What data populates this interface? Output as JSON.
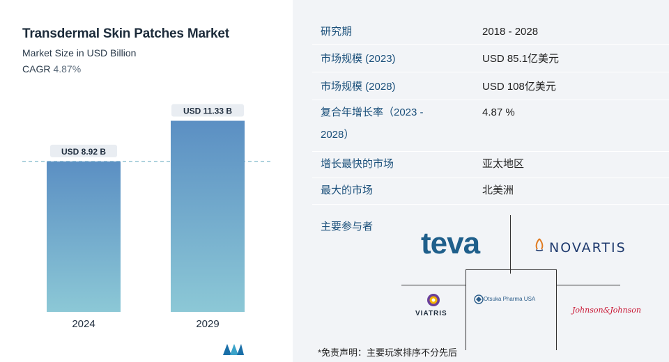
{
  "chart": {
    "title": "Transdermal Skin Patches Market",
    "subtitle": "Market Size in USD Billion",
    "cagr_label": "CAGR",
    "cagr_value": "4.87%"
  },
  "chart_data": {
    "type": "bar",
    "title": "Transdermal Skin Patches Market",
    "subtitle": "Market Size in USD Billion",
    "categories": [
      "2024",
      "2029"
    ],
    "values": [
      8.92,
      11.33
    ],
    "data_labels": [
      "USD 8.92 B",
      "USD 11.33 B"
    ],
    "ylim": [
      0,
      12.3
    ],
    "reference_line": 8.92,
    "grid": false,
    "legend": "none",
    "bar_color_top": "#5b8fc3",
    "bar_color_bottom": "#8cc8d6"
  },
  "info_table": {
    "rows": [
      {
        "key": "研究期",
        "value": "2018 - 2028"
      },
      {
        "key": "市场规模 (2023)",
        "value": "USD 85.1亿美元"
      },
      {
        "key": "市场规模 (2028)",
        "value": "USD 108亿美元"
      },
      {
        "key_line1": "复合年增长率（2023 -",
        "key_line2": "2028）",
        "value": "4.87 %"
      },
      {
        "key": "增长最快的市场",
        "value": "亚太地区"
      },
      {
        "key": "最大的市场",
        "value": "北美洲"
      }
    ]
  },
  "players": {
    "label": "主要参与者",
    "teva": "teva",
    "novartis": "NOVARTIS",
    "viatris": "VIATRIS",
    "otsuka": "Otsuka Pharma USA",
    "jnj": "Johnson&Johnson"
  },
  "disclaimer": "*免责声明：主要玩家排序不分先后",
  "colors": {
    "accent": "#1a4f7a",
    "panel_bg": "#f2f4f7"
  }
}
